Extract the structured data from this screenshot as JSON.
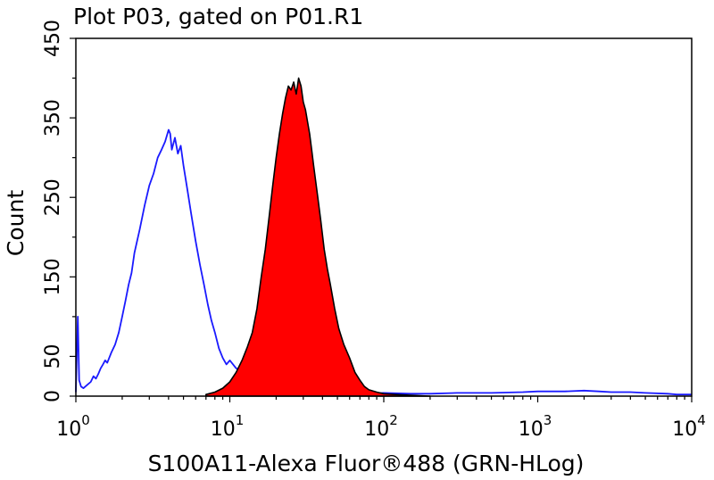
{
  "chart_data": {
    "type": "histogram",
    "title": "Plot P03, gated on P01.R1",
    "xlabel": "S100A11-Alexa Fluor®488 (GRN-HLog)",
    "ylabel": "Count",
    "xscale": "log",
    "xlim": [
      1,
      10000
    ],
    "ylim": [
      0,
      450
    ],
    "x_ticks": [
      {
        "base": "10",
        "exp": "0"
      },
      {
        "base": "10",
        "exp": "1"
      },
      {
        "base": "10",
        "exp": "2"
      },
      {
        "base": "10",
        "exp": "3"
      },
      {
        "base": "10",
        "exp": "4"
      }
    ],
    "x_tick_values": [
      1,
      10,
      100,
      1000,
      10000
    ],
    "y_ticks": [
      "0",
      "50",
      "150",
      "250",
      "350",
      "450"
    ],
    "y_tick_values": [
      0,
      50,
      150,
      250,
      350,
      450
    ],
    "y_minor_ticks": [
      100,
      200,
      300,
      400
    ],
    "grid": false,
    "legend": "none",
    "series": [
      {
        "style": "outline",
        "color": "#1a1aff",
        "x": [
          1.0,
          1.03,
          1.05,
          1.08,
          1.12,
          1.15,
          1.2,
          1.25,
          1.3,
          1.35,
          1.4,
          1.45,
          1.5,
          1.55,
          1.6,
          1.7,
          1.8,
          1.9,
          2.0,
          2.1,
          2.2,
          2.3,
          2.4,
          2.5,
          2.6,
          2.8,
          3.0,
          3.2,
          3.4,
          3.6,
          3.8,
          4.0,
          4.1,
          4.2,
          4.4,
          4.6,
          4.8,
          5.0,
          5.3,
          5.6,
          6.0,
          6.4,
          6.8,
          7.2,
          7.6,
          8.0,
          8.5,
          9.0,
          9.5,
          10.0,
          11.0,
          12.0,
          13.0,
          14.0,
          16.0,
          20.0,
          30.0,
          50.0,
          80.0,
          100.0,
          150.0,
          200.0,
          300.0,
          500.0,
          800.0,
          1000.0,
          1500.0,
          2000.0,
          2500.0,
          3000.0,
          4000.0,
          5000.0,
          7000.0,
          8000.0,
          10000.0
        ],
        "y": [
          5,
          100,
          20,
          12,
          10,
          12,
          15,
          18,
          25,
          22,
          28,
          35,
          40,
          45,
          42,
          55,
          65,
          80,
          100,
          120,
          140,
          155,
          180,
          195,
          210,
          240,
          265,
          280,
          300,
          310,
          320,
          335,
          330,
          310,
          325,
          305,
          315,
          290,
          260,
          230,
          195,
          165,
          140,
          115,
          95,
          80,
          60,
          48,
          40,
          45,
          35,
          30,
          22,
          15,
          10,
          6,
          4,
          3,
          3,
          4,
          3,
          3,
          4,
          4,
          5,
          6,
          6,
          7,
          6,
          5,
          5,
          4,
          3,
          2,
          2
        ]
      },
      {
        "style": "filled",
        "color": "#ff0000",
        "x": [
          7.0,
          8.0,
          9.0,
          10.0,
          11.0,
          12.0,
          13.0,
          14.0,
          15.0,
          16.0,
          17.0,
          18.0,
          19.0,
          20.0,
          21.0,
          22.0,
          23.0,
          24.0,
          25.0,
          26.0,
          27.0,
          28.0,
          29.0,
          30.0,
          31.0,
          32.0,
          33.0,
          34.0,
          35.0,
          37.0,
          39.0,
          41.0,
          43.0,
          45.0,
          48.0,
          51.0,
          55.0,
          60.0,
          65.0,
          70.0,
          75.0,
          80.0,
          90.0,
          100.0,
          120.0,
          150.0,
          200.0
        ],
        "y": [
          2,
          5,
          10,
          18,
          30,
          45,
          62,
          80,
          110,
          150,
          185,
          225,
          265,
          300,
          330,
          355,
          375,
          390,
          385,
          395,
          380,
          400,
          390,
          370,
          360,
          345,
          330,
          310,
          290,
          255,
          220,
          185,
          160,
          140,
          110,
          85,
          65,
          48,
          30,
          20,
          12,
          8,
          5,
          3,
          2,
          1,
          0
        ]
      }
    ]
  }
}
